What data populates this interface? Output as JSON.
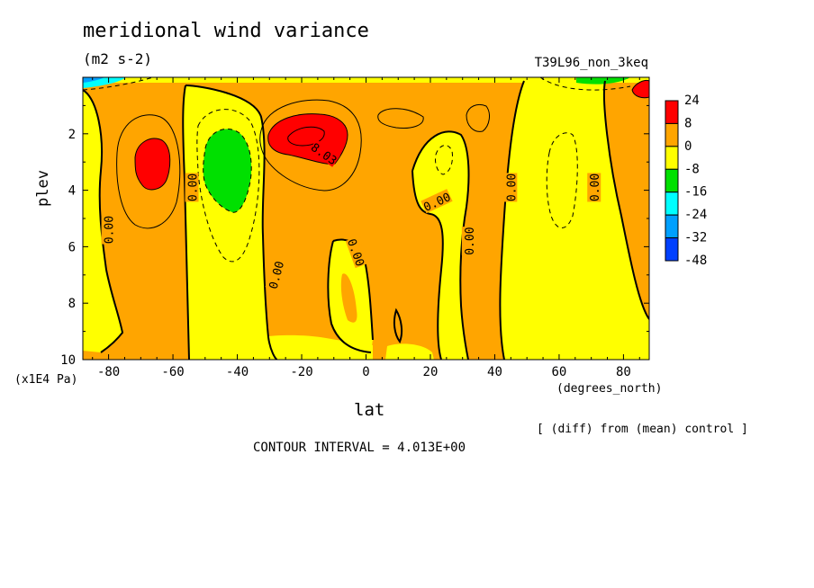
{
  "chart_data": {
    "type": "heatmap",
    "title": "meridional wind variance",
    "units": "(m2 s-2)",
    "experiment": "T39L96_non_3keq",
    "xlabel": "lat",
    "x_units": "(degrees_north)",
    "ylabel": "plev",
    "y_units": "(x1E4 Pa)",
    "x_ticks": [
      "-80",
      "-60",
      "-40",
      "-20",
      "0",
      "20",
      "40",
      "60",
      "80"
    ],
    "y_ticks": [
      "2",
      "4",
      "6",
      "8",
      "10"
    ],
    "xlim": [
      -88,
      88
    ],
    "ylim": [
      0,
      10
    ],
    "y_inverted": true,
    "contour_interval_text": "CONTOUR INTERVAL = 4.013E+00",
    "note": "[ (diff) from (mean) control ]",
    "colorbar": {
      "labels": [
        "24",
        "8",
        "0",
        "-8",
        "-16",
        "-24",
        "-32",
        "-48"
      ],
      "colors": [
        "#ff0000",
        "#ffa500",
        "#ffff00",
        "#00e000",
        "#00ffff",
        "#00a0ff",
        "#0040ff"
      ]
    },
    "contour_labels": [
      "0.00",
      "0.00",
      "0.00",
      "0.00",
      "0.00",
      "0.00",
      "0.00",
      "0.00",
      "8.03"
    ],
    "grid": false,
    "legend_position": "right"
  }
}
